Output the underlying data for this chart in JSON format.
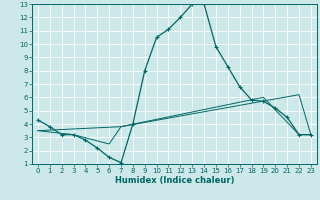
{
  "xlabel": "Humidex (Indice chaleur)",
  "xlim": [
    -0.5,
    23.5
  ],
  "ylim": [
    1,
    13
  ],
  "xticks": [
    0,
    1,
    2,
    3,
    4,
    5,
    6,
    7,
    8,
    9,
    10,
    11,
    12,
    13,
    14,
    15,
    16,
    17,
    18,
    19,
    20,
    21,
    22,
    23
  ],
  "yticks": [
    1,
    2,
    3,
    4,
    5,
    6,
    7,
    8,
    9,
    10,
    11,
    12,
    13
  ],
  "bg_color": "#cce8e8",
  "line_color": "#006666",
  "grid_color": "#ffffff",
  "curve_x": [
    0,
    1,
    2,
    3,
    4,
    5,
    6,
    7,
    8,
    9,
    10,
    11,
    12,
    13,
    14,
    15,
    16,
    17,
    18,
    19,
    20,
    21,
    22,
    23
  ],
  "curve_y": [
    4.3,
    3.8,
    3.2,
    3.2,
    2.8,
    2.2,
    1.5,
    1.1,
    4.0,
    8.0,
    10.5,
    11.1,
    12.0,
    13.0,
    13.0,
    9.8,
    8.3,
    6.8,
    5.8,
    5.7,
    5.2,
    4.5,
    3.2,
    3.2
  ],
  "reg1_x": [
    0,
    7,
    19,
    22,
    23
  ],
  "reg1_y": [
    3.5,
    3.8,
    6.0,
    3.2,
    3.2
  ],
  "reg2_x": [
    0,
    3,
    6,
    7,
    22,
    23
  ],
  "reg2_y": [
    3.5,
    3.2,
    2.5,
    3.8,
    6.2,
    3.2
  ]
}
